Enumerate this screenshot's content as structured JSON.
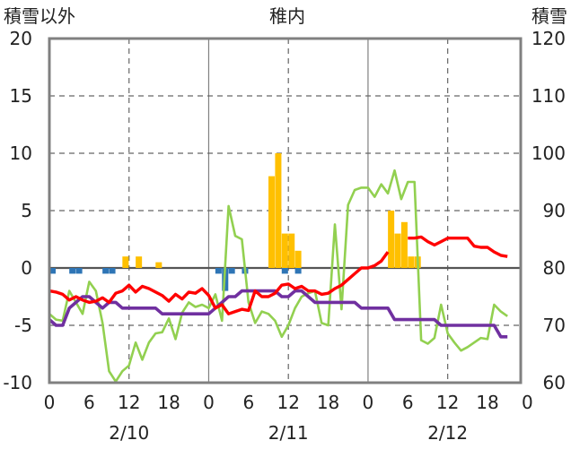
{
  "header": {
    "left_label": "積雪以外",
    "title": "稚内",
    "right_label": "積雪"
  },
  "chart_data": {
    "type": "line",
    "title": "稚内",
    "ylabel_left": "積雪以外",
    "ylabel_right": "積雪",
    "ylim_left": [
      -10,
      20
    ],
    "ylim_right": [
      60,
      120
    ],
    "yticks_left": [
      "20",
      "15",
      "10",
      "5",
      "0",
      "-5",
      "-10"
    ],
    "yticks_right": [
      "120",
      "110",
      "100",
      "90",
      "80",
      "70",
      "60"
    ],
    "xlim": [
      0,
      71
    ],
    "xticks": [
      "0",
      "6",
      "12",
      "18",
      "0",
      "6",
      "12",
      "18",
      "0",
      "6",
      "12",
      "18",
      "0"
    ],
    "date_labels": [
      "2/10",
      "2/11",
      "2/12"
    ],
    "grid": true,
    "colors": {
      "precip": "#ffc000",
      "sunshine": "#2e75b6",
      "temperature": "#ff0000",
      "wind": "#92d050",
      "snow_depth": "#7030a0",
      "frame": "#808080"
    },
    "series": [
      {
        "key": "precip",
        "type": "bar",
        "axis": "left",
        "x": [
          11,
          13,
          16,
          33,
          34,
          35,
          36,
          37,
          51,
          52,
          53,
          54,
          55
        ],
        "values": [
          1,
          1,
          0.5,
          8,
          10,
          3,
          3,
          1.5,
          5,
          3,
          4,
          1,
          1
        ]
      },
      {
        "key": "sunshine",
        "type": "bar",
        "axis": "left",
        "x": [
          0,
          3,
          4,
          8,
          9,
          25,
          26,
          27,
          29,
          35,
          37
        ],
        "values": [
          -0.5,
          -0.5,
          -0.5,
          -0.5,
          -0.5,
          -0.5,
          -2,
          -0.5,
          -0.5,
          -0.5,
          -0.5
        ]
      },
      {
        "key": "temperature",
        "type": "line",
        "axis": "left",
        "x": [
          0,
          1,
          2,
          3,
          4,
          5,
          6,
          7,
          8,
          9,
          10,
          11,
          12,
          13,
          14,
          15,
          16,
          17,
          18,
          19,
          20,
          21,
          22,
          23,
          24,
          25,
          26,
          27,
          28,
          29,
          30,
          31,
          32,
          33,
          34,
          35,
          36,
          37,
          38,
          39,
          40,
          41,
          42,
          43,
          44,
          45,
          46,
          47,
          48,
          49,
          50,
          51
        ],
        "values": [
          -2,
          -2.1,
          -2.3,
          -2.8,
          -2.5,
          -2.8,
          -3,
          -2.9,
          -2.6,
          -3,
          -2.2,
          -2,
          -1.5,
          -2.1,
          -1.6,
          -1.8,
          -2.1,
          -2.4,
          -2.9,
          -2.3,
          -2.7,
          -2.1,
          -2.2,
          -1.8,
          -2.4,
          -3.5,
          -3.2,
          -4,
          -3.8,
          -3.6,
          -3.7,
          -2,
          -2.5,
          -2.5,
          -2.2,
          -1.5,
          -1.4,
          -1.8,
          -1.6,
          -2,
          -2,
          -2.3,
          -2.2,
          -1.8,
          -1.5,
          -1,
          -0.5,
          0,
          0,
          0.2,
          0.6,
          1.4
        ]
      },
      {
        "key": "temperature_late",
        "type": "line",
        "axis": "left",
        "x": [
          54,
          55,
          56,
          57,
          58,
          59,
          60,
          61,
          62,
          63,
          64,
          65,
          66,
          67,
          68,
          69
        ],
        "values": [
          2.6,
          2.6,
          2.7,
          2.3,
          2,
          2.3,
          2.6,
          2.6,
          2.6,
          2.6,
          1.9,
          1.8,
          1.8,
          1.4,
          1.1,
          1
        ]
      },
      {
        "key": "wind",
        "type": "line",
        "axis": "left",
        "x": [
          0,
          1,
          2,
          3,
          4,
          5,
          6,
          7,
          8,
          9,
          10,
          11,
          12,
          13,
          14,
          15,
          16,
          17,
          18,
          19,
          20,
          21,
          22,
          23,
          24,
          25,
          26,
          27,
          28,
          29,
          30,
          31,
          32,
          33,
          34,
          35,
          36,
          37,
          38,
          39,
          40,
          41,
          42,
          43,
          44,
          45,
          46,
          47,
          48,
          49,
          50,
          51,
          52,
          53,
          54,
          55,
          56,
          57,
          58,
          59,
          60,
          61,
          62,
          63,
          64,
          65,
          66,
          67,
          68,
          69
        ],
        "values": [
          -4,
          -4.5,
          -4.6,
          -2,
          -3,
          -4,
          -1.2,
          -2,
          -4.8,
          -9,
          -9.9,
          -9,
          -8.5,
          -6.5,
          -8,
          -6.5,
          -5.7,
          -5.6,
          -4.4,
          -6.2,
          -3.9,
          -3,
          -3.4,
          -3.2,
          -3.5,
          -2.3,
          -4.6,
          5.4,
          2.8,
          2.5,
          -3,
          -4.8,
          -3.8,
          -4,
          -4.6,
          -6,
          -5,
          -3.5,
          -2.5,
          -2.2,
          -2,
          -4.8,
          -5,
          3.8,
          -3.6,
          5.5,
          6.8,
          7,
          7,
          6.2,
          7.3,
          6.5,
          8.5,
          6,
          7.5,
          7.5,
          -6.3,
          -6.6,
          -6.1,
          -3.2,
          -5.7,
          -6.5,
          -7.2,
          -6.9,
          -6.5,
          -6.1,
          -6.2,
          -3.2,
          -3.8,
          -4.2
        ]
      },
      {
        "key": "snow_depth",
        "type": "line",
        "axis": "right",
        "x": [
          0,
          1,
          2,
          3,
          4,
          5,
          6,
          7,
          8,
          9,
          10,
          11,
          12,
          13,
          14,
          15,
          16,
          17,
          18,
          19,
          20,
          21,
          22,
          23,
          24,
          25,
          26,
          27,
          28,
          29,
          30,
          31,
          32,
          33,
          34,
          35,
          36,
          37,
          38,
          39,
          40,
          41,
          42,
          43,
          44,
          45,
          46,
          47,
          48,
          49,
          50,
          51,
          52,
          53,
          54,
          55,
          56,
          57,
          58,
          59,
          60,
          61,
          62,
          63,
          64,
          65,
          66,
          67,
          68,
          69
        ],
        "values": [
          71,
          70,
          70,
          73,
          74,
          75,
          75,
          74,
          73,
          74,
          74,
          73,
          73,
          73,
          73,
          73,
          73,
          72,
          72,
          72,
          72,
          72,
          72,
          72,
          72,
          73,
          74,
          75,
          75,
          76,
          76,
          76,
          76,
          76,
          76,
          75,
          75,
          76,
          76,
          75,
          74,
          74,
          74,
          74,
          74,
          74,
          74,
          73,
          73,
          73,
          73,
          73,
          71,
          71,
          71,
          71,
          71,
          71,
          71,
          70,
          70,
          70,
          70,
          70,
          70,
          70,
          70,
          70,
          68,
          68
        ]
      }
    ]
  }
}
